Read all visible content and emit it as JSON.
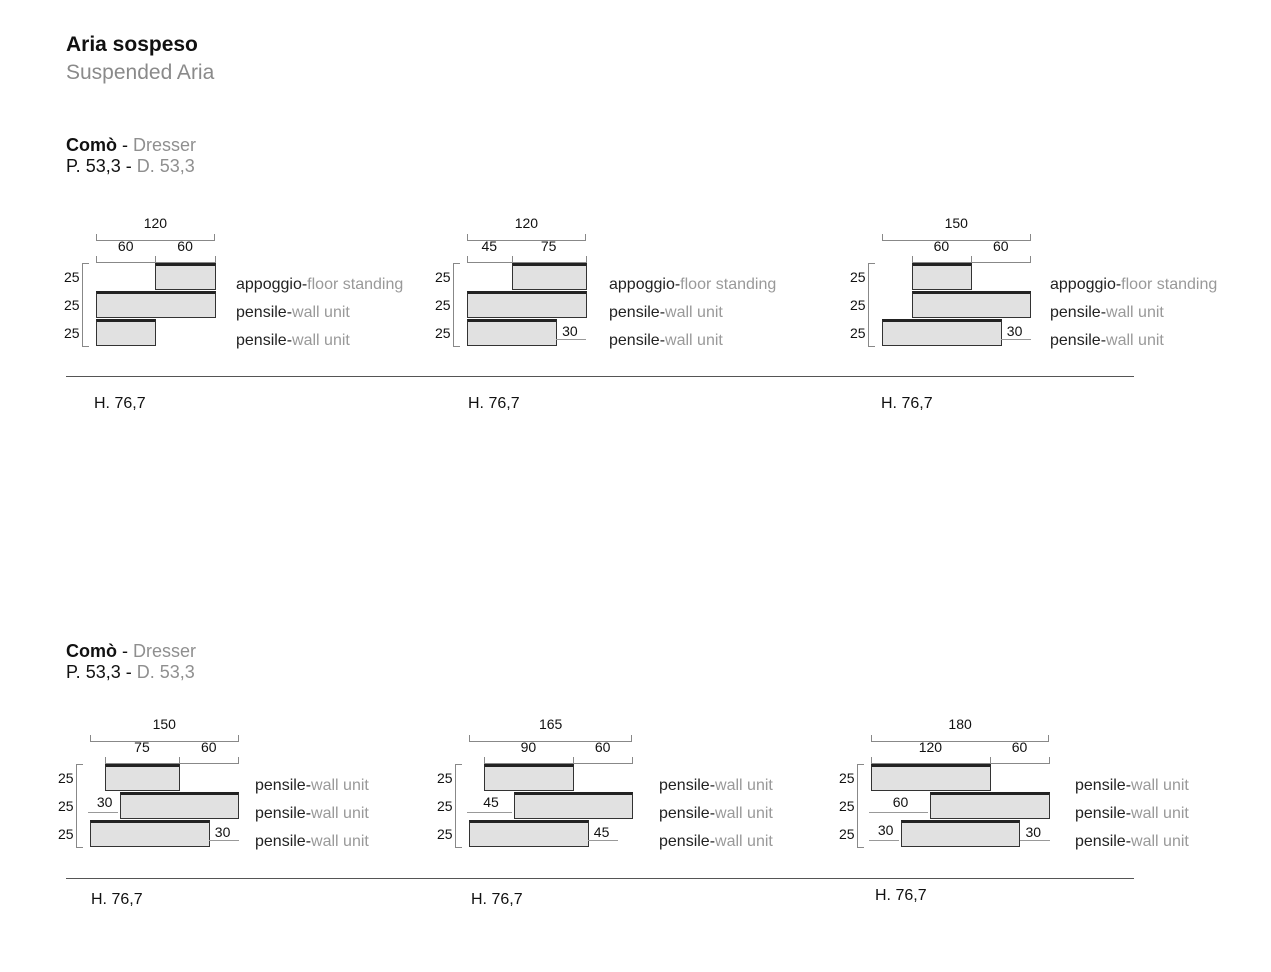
{
  "header": {
    "title": "Aria sospeso",
    "subtitle": "Suspended Aria"
  },
  "sections": [
    {
      "name": "Comò",
      "name_en": "Dresser",
      "sep": " - ",
      "depth": "P. 53,3",
      "depth_en": "D. 53,3",
      "diagrams": [
        {
          "total": "120",
          "total_cm": 120,
          "segments": [
            {
              "label": "60",
              "cm": 60
            },
            {
              "label": "60",
              "cm": 60
            }
          ],
          "seg_offset_cm": 0,
          "rows": [
            {
              "offset": 60,
              "width": 60,
              "h": "25",
              "it": "appoggio-",
              "en": "floor standing"
            },
            {
              "offset": 0,
              "width": 120,
              "h": "25",
              "it": "pensile-",
              "en": "wall unit"
            },
            {
              "offset": 0,
              "width": 60,
              "h": "25",
              "it": "pensile-",
              "en": "wall unit"
            }
          ],
          "height": "H. 76,7"
        },
        {
          "total": "120",
          "total_cm": 120,
          "segments": [
            {
              "label": "45",
              "cm": 45
            },
            {
              "label": "75",
              "cm": 75
            }
          ],
          "seg_offset_cm": 0,
          "rows": [
            {
              "offset": 45,
              "width": 75,
              "h": "25",
              "it": "appoggio-",
              "en": "floor standing"
            },
            {
              "offset": 0,
              "width": 120,
              "h": "25",
              "it": "pensile-",
              "en": "wall unit"
            },
            {
              "offset": 0,
              "width": 90,
              "h": "25",
              "it": "pensile-",
              "en": "wall unit",
              "right": "30"
            }
          ],
          "height": "H. 76,7"
        },
        {
          "total": "150",
          "total_cm": 150,
          "segments": [
            {
              "label": "60",
              "cm": 60
            },
            {
              "label": "60",
              "cm": 60
            }
          ],
          "seg_offset_cm": 30,
          "rows": [
            {
              "offset": 30,
              "width": 60,
              "h": "25",
              "it": "appoggio-",
              "en": "floor standing"
            },
            {
              "offset": 30,
              "width": 120,
              "h": "25",
              "it": "pensile-",
              "en": "wall unit"
            },
            {
              "offset": 0,
              "width": 120,
              "h": "25",
              "it": "pensile-",
              "en": "wall unit",
              "right": "30"
            }
          ],
          "height": "H. 76,7"
        }
      ]
    },
    {
      "name": "Comò",
      "name_en": "Dresser",
      "sep": " - ",
      "depth": "P. 53,3",
      "depth_en": "D. 53,3",
      "diagrams": [
        {
          "total": "150",
          "total_cm": 150,
          "segments": [
            {
              "label": "75",
              "cm": 75
            },
            {
              "label": "60",
              "cm": 60
            }
          ],
          "seg_offset_cm": 15,
          "rows": [
            {
              "offset": 15,
              "width": 75,
              "h": "25",
              "it": "pensile-",
              "en": "wall unit"
            },
            {
              "offset": 30,
              "width": 120,
              "h": "25",
              "it": "pensile-",
              "en": "wall unit",
              "left": "30"
            },
            {
              "offset": 0,
              "width": 120,
              "h": "25",
              "it": "pensile-",
              "en": "wall unit",
              "right": "30"
            }
          ],
          "height": "H. 76,7"
        },
        {
          "total": "165",
          "total_cm": 165,
          "segments": [
            {
              "label": "90",
              "cm": 90
            },
            {
              "label": "60",
              "cm": 60
            }
          ],
          "seg_offset_cm": 15,
          "rows": [
            {
              "offset": 15,
              "width": 90,
              "h": "25",
              "it": "pensile-",
              "en": "wall unit"
            },
            {
              "offset": 45,
              "width": 120,
              "h": "25",
              "it": "pensile-",
              "en": "wall unit",
              "left": "45"
            },
            {
              "offset": 0,
              "width": 120,
              "h": "25",
              "it": "pensile-",
              "en": "wall unit",
              "right": "45"
            }
          ],
          "height": "H. 76,7"
        },
        {
          "total": "180",
          "total_cm": 180,
          "segments": [
            {
              "label": "120",
              "cm": 120
            },
            {
              "label": "60",
              "cm": 60
            }
          ],
          "seg_offset_cm": 0,
          "rows": [
            {
              "offset": 0,
              "width": 120,
              "h": "25",
              "it": "pensile-",
              "en": "wall unit"
            },
            {
              "offset": 60,
              "width": 120,
              "h": "25",
              "it": "pensile-",
              "en": "wall unit",
              "left": "60"
            },
            {
              "offset": 30,
              "width": 120,
              "h": "25",
              "it": "pensile-",
              "en": "wall unit",
              "left": "30",
              "right": "30"
            }
          ],
          "height": "H. 76,7"
        }
      ]
    }
  ],
  "colors": {
    "box_fill": "#e1e1e1",
    "secondary_text": "#999999"
  }
}
